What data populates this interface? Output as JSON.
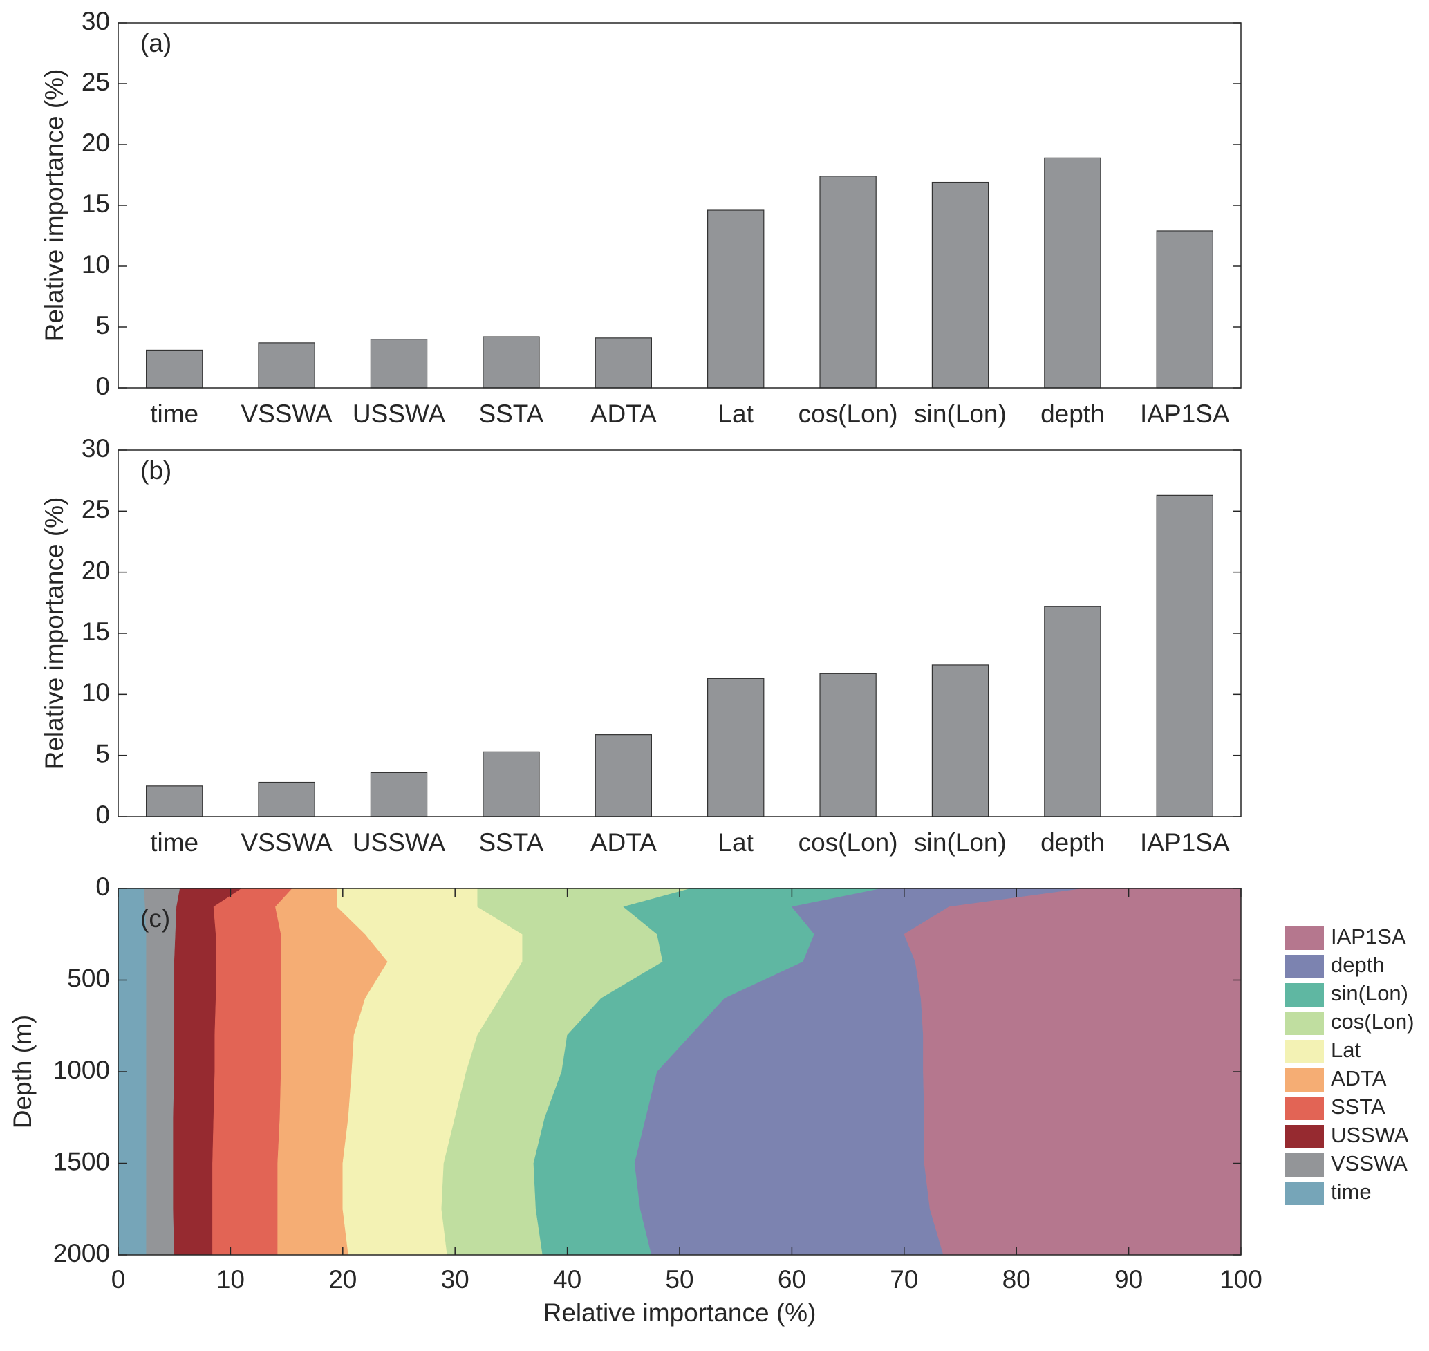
{
  "chart_data": [
    {
      "type": "bar",
      "label": "(a)",
      "ylabel": "Relative importance (%)",
      "categories": [
        "time",
        "VSSWA",
        "USSWA",
        "SSTA",
        "ADTA",
        "Lat",
        "cos(Lon)",
        "sin(Lon)",
        "depth",
        "IAP1SA"
      ],
      "values": [
        3.1,
        3.7,
        4.0,
        4.2,
        4.1,
        14.6,
        17.4,
        16.9,
        18.9,
        12.9
      ],
      "color": "#939598",
      "ylim": [
        0,
        30
      ],
      "yticks": [
        0,
        5,
        10,
        15,
        20,
        25,
        30
      ]
    },
    {
      "type": "bar",
      "label": "(b)",
      "ylabel": "Relative importance (%)",
      "categories": [
        "time",
        "VSSWA",
        "USSWA",
        "SSTA",
        "ADTA",
        "Lat",
        "cos(Lon)",
        "sin(Lon)",
        "depth",
        "IAP1SA"
      ],
      "values": [
        2.5,
        2.8,
        3.6,
        5.3,
        6.7,
        11.3,
        11.7,
        12.4,
        17.2,
        26.3
      ],
      "color": "#939598",
      "ylim": [
        0,
        30
      ],
      "yticks": [
        0,
        5,
        10,
        15,
        20,
        25,
        30
      ]
    },
    {
      "type": "area",
      "label": "(c)",
      "xlabel": "Relative importance (%)",
      "ylabel": "Depth (m)",
      "y": [
        0,
        100,
        250,
        400,
        600,
        800,
        1000,
        1250,
        1500,
        1750,
        2000
      ],
      "xlim": [
        0,
        100
      ],
      "xticks": [
        0,
        10,
        20,
        30,
        40,
        50,
        60,
        70,
        80,
        90,
        100
      ],
      "ylim": [
        0,
        2000
      ],
      "yticks": [
        0,
        500,
        1000,
        1500,
        2000
      ],
      "yreverse": true,
      "legend": "right",
      "series": [
        {
          "name": "time",
          "color": "#76a5b8",
          "values": [
            2.3,
            2.4,
            2.5,
            2.5,
            2.5,
            2.5,
            2.5,
            2.5,
            2.5,
            2.5,
            2.5
          ]
        },
        {
          "name": "VSSWA",
          "color": "#939598",
          "values": [
            3.2,
            2.8,
            2.6,
            2.5,
            2.5,
            2.5,
            2.5,
            2.4,
            2.4,
            2.4,
            2.5
          ]
        },
        {
          "name": "USSWA",
          "color": "#962a30",
          "values": [
            5.5,
            3.3,
            3.6,
            3.7,
            3.7,
            3.6,
            3.6,
            3.6,
            3.5,
            3.5,
            3.4
          ]
        },
        {
          "name": "SSTA",
          "color": "#e26455",
          "values": [
            4.5,
            5.5,
            5.8,
            5.8,
            5.8,
            5.9,
            5.9,
            5.9,
            5.8,
            5.8,
            5.8
          ]
        },
        {
          "name": "ADTA",
          "color": "#f5ad74",
          "values": [
            4.0,
            5.5,
            7.5,
            9.5,
            7.5,
            6.5,
            6.3,
            6.1,
            5.8,
            5.8,
            6.3
          ]
        },
        {
          "name": "Lat",
          "color": "#f3f2b4",
          "values": [
            12.5,
            12.5,
            14.0,
            12.0,
            12.0,
            11.0,
            10.2,
            9.5,
            9.0,
            8.8,
            8.8
          ]
        },
        {
          "name": "cos(Lon)",
          "color": "#c0dea0",
          "values": [
            19.0,
            13.0,
            12.0,
            12.5,
            9.0,
            8.0,
            8.5,
            8.0,
            8.0,
            8.4,
            8.5
          ]
        },
        {
          "name": "sin(Lon)",
          "color": "#5fb7a2",
          "values": [
            17.0,
            15.0,
            14.0,
            12.5,
            11.0,
            11.0,
            8.5,
            9.0,
            9.0,
            9.3,
            9.7
          ]
        },
        {
          "name": "depth",
          "color": "#7c83b0",
          "values": [
            18.0,
            14.0,
            8.0,
            10.0,
            17.5,
            20.7,
            23.7,
            24.8,
            25.8,
            25.8,
            26.0
          ]
        },
        {
          "name": "IAP1SA",
          "color": "#b5778e",
          "values": [
            14.0,
            26.0,
            30.0,
            29.0,
            28.5,
            28.3,
            28.3,
            28.2,
            28.2,
            27.7,
            26.5
          ]
        }
      ]
    }
  ]
}
